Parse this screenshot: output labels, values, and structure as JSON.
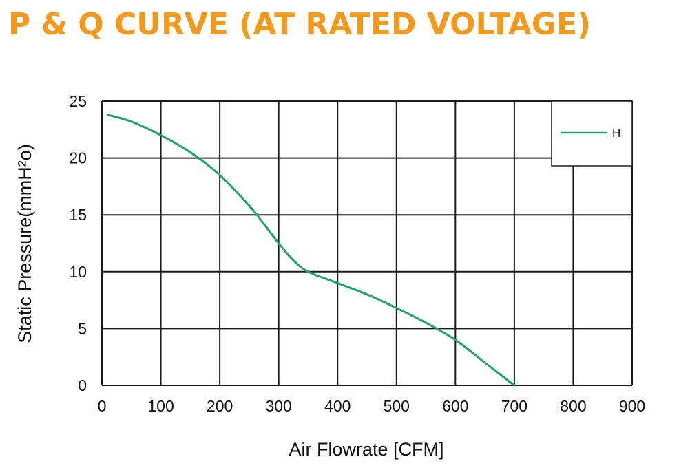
{
  "colors": {
    "title": "#F39A1E",
    "curve": "#1FA463",
    "grid": "#1a1a1a",
    "text": "#111111"
  },
  "chart_data": {
    "type": "line",
    "title": "P & Q CURVE (AT RATED VOLTAGE)",
    "xlabel": "Air  Flowrate   [CFM]",
    "ylabel": "Static Pressure(mmH²o)",
    "xlim": [
      0,
      900
    ],
    "ylim": [
      0,
      25
    ],
    "x_ticks": [
      "0",
      "100",
      "200",
      "300",
      "400",
      "500",
      "600",
      "700",
      "800",
      "900"
    ],
    "y_ticks": [
      "0",
      "5",
      "10",
      "15",
      "20",
      "25"
    ],
    "grid": true,
    "legend_position": "top-right",
    "series": [
      {
        "name": "H",
        "x": [
          10,
          50,
          100,
          150,
          200,
          250,
          275,
          300,
          325,
          350,
          400,
          450,
          500,
          550,
          600,
          650,
          700
        ],
        "y": [
          23.8,
          23.2,
          22.0,
          20.5,
          18.5,
          15.8,
          14.2,
          12.5,
          11.0,
          10.0,
          9.0,
          8.0,
          6.8,
          5.5,
          4.0,
          2.0,
          0
        ]
      }
    ]
  }
}
